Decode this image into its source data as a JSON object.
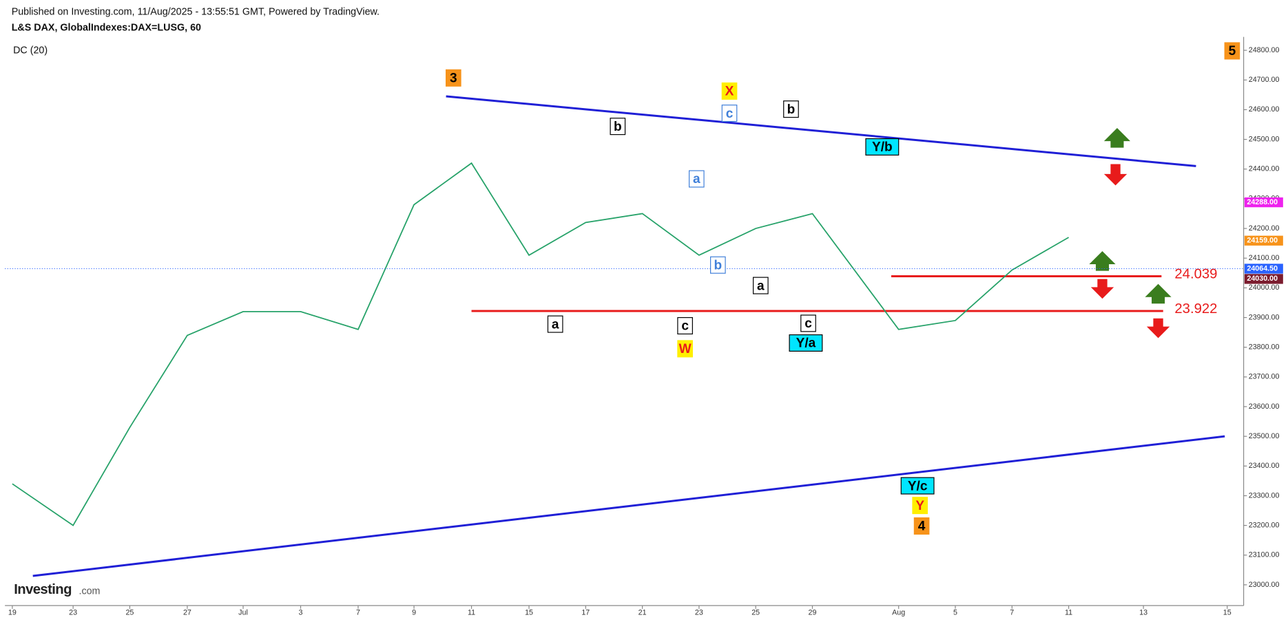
{
  "header": {
    "published": "Published on Investing.com, 11/Aug/2025 - 13:55:51 GMT, Powered by TradingView.",
    "logo": "Investing",
    "logo_suffix": ".com"
  },
  "chart_data": {
    "type": "line",
    "title": "L&S DAX, GlobalIndexes:DAX=LUSG, 60",
    "indicator": "DC (20)",
    "categories": [
      "19",
      "23",
      "25",
      "27",
      "Jul",
      "3",
      "7",
      "9",
      "11",
      "15",
      "17",
      "21",
      "23",
      "25",
      "29",
      "Aug",
      "5",
      "7",
      "11",
      "13",
      "15"
    ],
    "values": [
      23340,
      23200,
      23530,
      23840,
      23920,
      23920,
      23860,
      24280,
      24420,
      24110,
      24220,
      24250,
      24110,
      24200,
      24250,
      23860,
      23890,
      24060,
      24170,
      null,
      null
    ],
    "color": "#26a269",
    "ylim": [
      22930,
      24845
    ],
    "yticks": [
      {
        "value": 23000,
        "label": "23000.00"
      },
      {
        "value": 23100,
        "label": "23100.00"
      },
      {
        "value": 23200,
        "label": "23200.00"
      },
      {
        "value": 23300,
        "label": "23300.00"
      },
      {
        "value": 23400,
        "label": "23400.00"
      },
      {
        "value": 23500,
        "label": "23500.00"
      },
      {
        "value": 23600,
        "label": "23600.00"
      },
      {
        "value": 23700,
        "label": "23700.00"
      },
      {
        "value": 23800,
        "label": "23800.00"
      },
      {
        "value": 23900,
        "label": "23900.00"
      },
      {
        "value": 24000,
        "label": "24000.00"
      },
      {
        "value": 24100,
        "label": "24100.00"
      },
      {
        "value": 24200,
        "label": "24200.00"
      },
      {
        "value": 24300,
        "label": "24300.00"
      },
      {
        "value": 24400,
        "label": "24400.00"
      },
      {
        "value": 24500,
        "label": "24500.00"
      },
      {
        "value": 24600,
        "label": "24600.00"
      },
      {
        "value": 24700,
        "label": "24700.00"
      },
      {
        "value": 24800,
        "label": "24800.00"
      }
    ],
    "price_tags": [
      {
        "value": 24288,
        "label": "24288.00",
        "color": "#ee22ee"
      },
      {
        "value": 24159,
        "label": "24159.00",
        "color": "#f7931a"
      },
      {
        "value": 24064.5,
        "label": "24064.50",
        "color": "#2962ff"
      },
      {
        "value": 24030,
        "label": "24030.00",
        "color": "#7b1c2e"
      }
    ],
    "levels": [
      {
        "value": 24039,
        "label": "24.039",
        "color": "#e81b1b"
      },
      {
        "value": 23922,
        "label": "23.922",
        "color": "#e81b1b"
      }
    ],
    "trendlines": [
      {
        "start": 24645,
        "end": 24410,
        "color": "#1f1fd6"
      },
      {
        "start": 23030,
        "end": 23500,
        "color": "#1f1fd6"
      }
    ],
    "annotations": [
      {
        "label": "3",
        "bg": "#f7931a",
        "fg": "#000000",
        "border": "#f7931a"
      },
      {
        "label": "X",
        "bg": "#ffef00",
        "fg": "#e81b1b",
        "border": "#ffef00"
      },
      {
        "label": "c",
        "bg": "#ffffff",
        "fg": "#3f7fd9",
        "border": "#3f7fd9"
      },
      {
        "label": "b",
        "bg": "#ffffff",
        "fg": "#000000",
        "border": "#000000"
      },
      {
        "label": "b",
        "bg": "#ffffff",
        "fg": "#000000",
        "border": "#000000"
      },
      {
        "label": "a",
        "bg": "#ffffff",
        "fg": "#3f7fd9",
        "border": "#3f7fd9"
      },
      {
        "label": "b",
        "bg": "#ffffff",
        "fg": "#3f7fd9",
        "border": "#3f7fd9"
      },
      {
        "label": "Y/b",
        "bg": "#00e5ff",
        "fg": "#000000",
        "border": "#000000"
      },
      {
        "label": "a",
        "bg": "#ffffff",
        "fg": "#000000",
        "border": "#000000"
      },
      {
        "label": "a",
        "bg": "#ffffff",
        "fg": "#000000",
        "border": "#000000"
      },
      {
        "label": "c",
        "bg": "#ffffff",
        "fg": "#000000",
        "border": "#000000"
      },
      {
        "label": "W",
        "bg": "#ffef00",
        "fg": "#e81b1b",
        "border": "#ffef00"
      },
      {
        "label": "c",
        "bg": "#ffffff",
        "fg": "#000000",
        "border": "#000000"
      },
      {
        "label": "Y/a",
        "bg": "#00e5ff",
        "fg": "#000000",
        "border": "#000000"
      },
      {
        "label": "Y/c",
        "bg": "#00e5ff",
        "fg": "#000000",
        "border": "#000000"
      },
      {
        "label": "Y",
        "bg": "#ffef00",
        "fg": "#e81b1b",
        "border": "#ffef00"
      },
      {
        "label": "4",
        "bg": "#f7931a",
        "fg": "#000000",
        "border": "#f7931a"
      },
      {
        "label": "5",
        "bg": "#f7931a",
        "fg": "#000000",
        "border": "#f7931a"
      }
    ]
  }
}
